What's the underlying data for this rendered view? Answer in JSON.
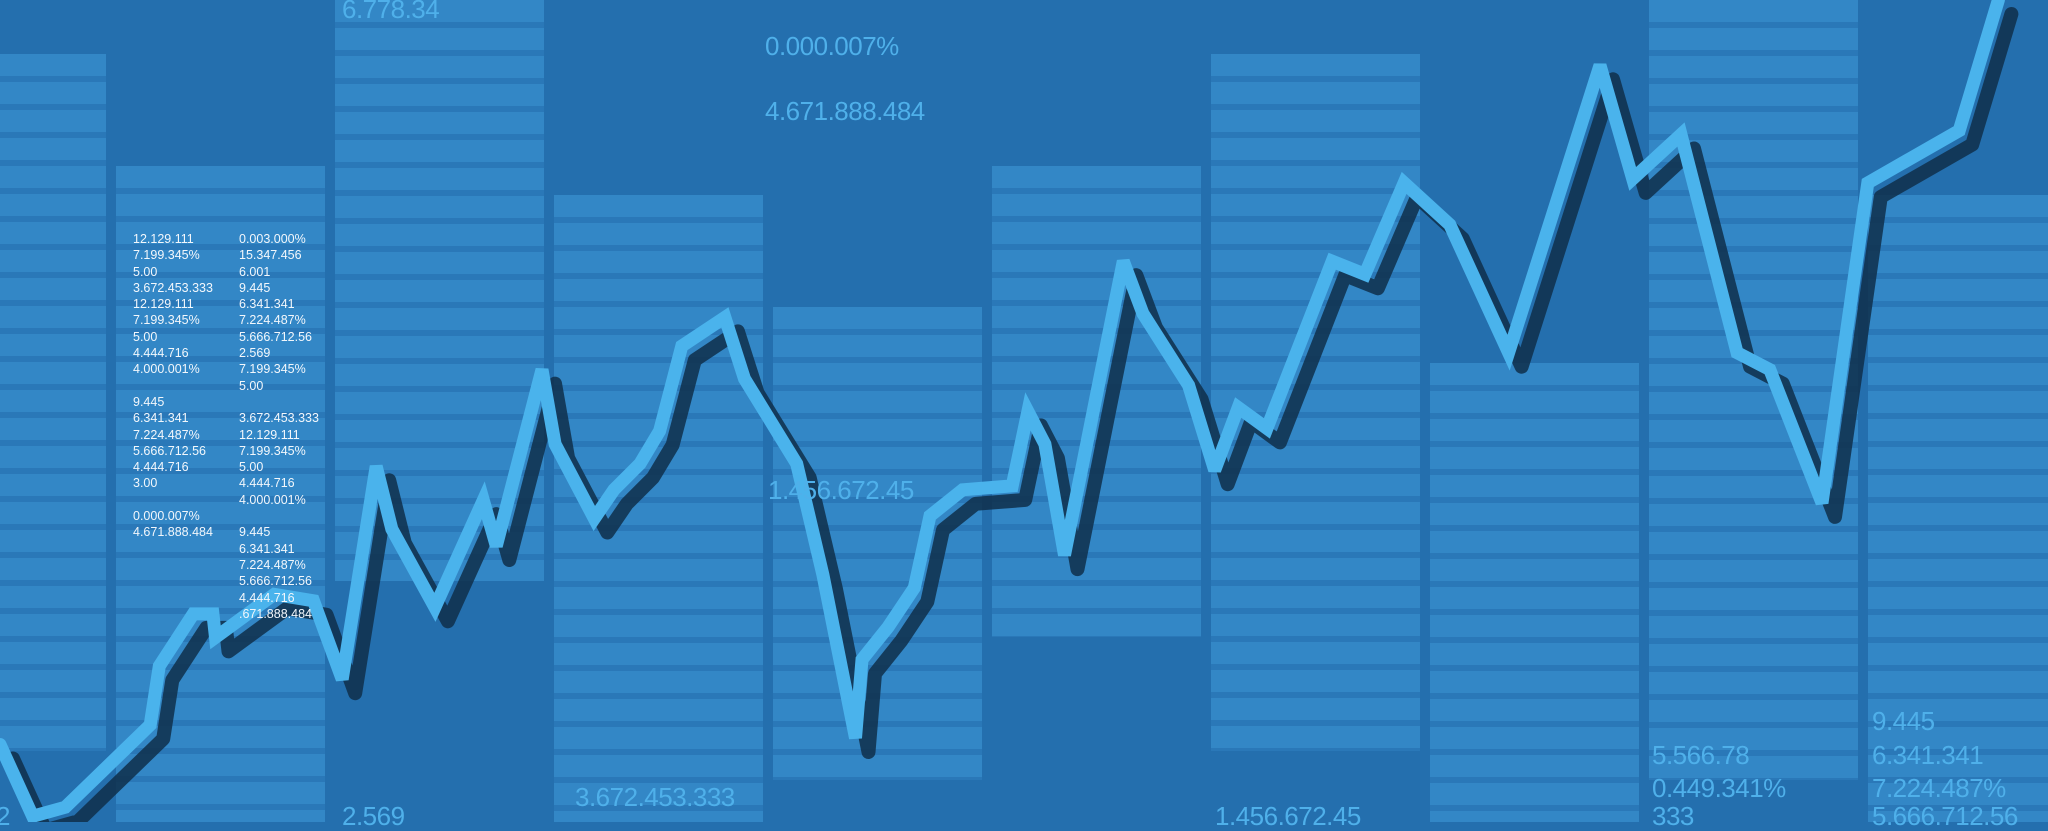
{
  "colors": {
    "background": "#246fae",
    "bars": "#3387c6",
    "line": "#4ab3ec",
    "line_shadow": "#0f2f4a",
    "label": "#4fb0ea"
  },
  "small_columns": [
    [
      "12.129.111",
      "7.199.345%",
      "5.00",
      "3.672.453.333",
      "12.129.111",
      "7.199.345%",
      "5.00",
      "4.444.716",
      "4.000.001%",
      "",
      "9.445",
      "6.341.341",
      "7.224.487%",
      "5.666.712.56",
      "4.444.716",
      "3.00",
      "",
      "0.000.007%",
      "4.671.888.484"
    ],
    [
      "0.003.000%",
      "15.347.456",
      "6.001",
      "9.445",
      "6.341.341",
      "7.224.487%",
      "5.666.712.56",
      "2.569",
      "7.199.345%",
      "5.00",
      "",
      "3.672.453.333",
      "12.129.111",
      "7.199.345%",
      "5.00",
      "4.444.716",
      "4.000.001%",
      "",
      "9.445",
      "6.341.341",
      "7.224.487%",
      "5.666.712.56",
      "4.444.716",
      ".671.888.484"
    ]
  ],
  "labels": {
    "top_left": "6.778.34",
    "top_mid_1": "0.000.007%",
    "top_mid_2": "4.671.888.484",
    "mid": "1.456.672.45",
    "bottom_left_partial": "2",
    "bottom_1": "2.569",
    "bottom_2": "3.672.453.333",
    "bottom_3": "1.456.672.45",
    "right_1": [
      "5.566.78",
      "0.449.341%",
      "333"
    ],
    "right_2": [
      "9.445",
      "6.341.341",
      "7.224.487%",
      "5.666.712.56"
    ]
  }
}
